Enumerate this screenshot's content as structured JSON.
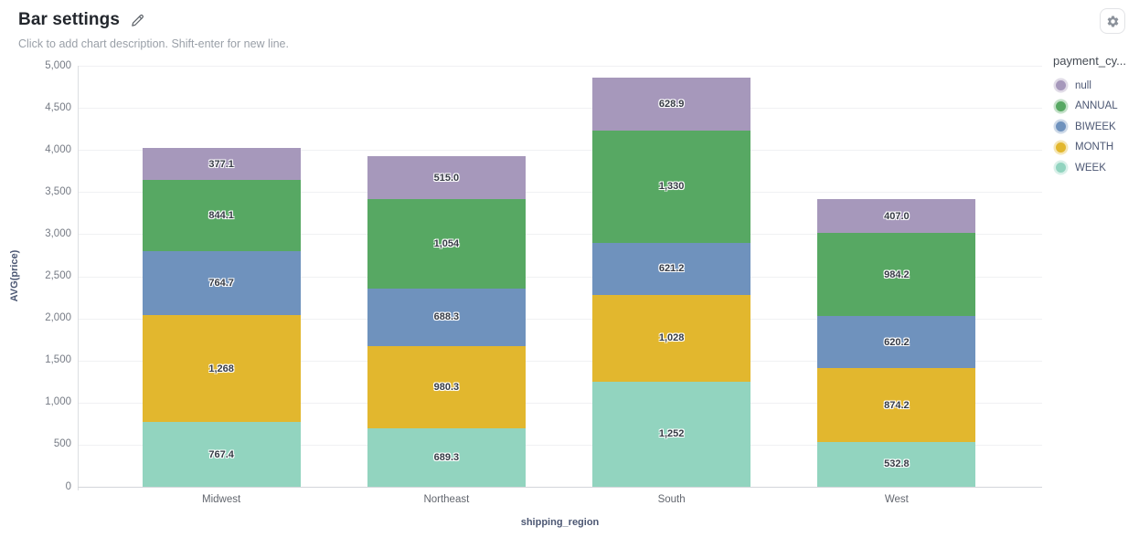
{
  "header": {
    "title": "Bar settings",
    "description_placeholder": "Click to add chart description. Shift-enter for new line.",
    "edit_icon": "pencil-icon",
    "settings_icon": "gear-icon"
  },
  "chart_data": {
    "type": "bar",
    "stacked": true,
    "title": "Bar settings",
    "xlabel": "shipping_region",
    "ylabel": "AVG(price)",
    "ylim": [
      0,
      5000
    ],
    "y_tick_step": 500,
    "y_ticks": [
      "0",
      "500",
      "1,000",
      "1,500",
      "2,000",
      "2,500",
      "3,000",
      "3,500",
      "4,000",
      "4,500",
      "5,000"
    ],
    "grid": true,
    "legend_position": "right",
    "legend_title": "payment_cy...",
    "categories": [
      "Midwest",
      "Northeast",
      "South",
      "West"
    ],
    "series": [
      {
        "name": "null",
        "color": "#a698bb",
        "values": [
          377.1,
          515.0,
          628.9,
          407.0
        ],
        "labels": [
          "377.1",
          "515.0",
          "628.9",
          "407.0"
        ]
      },
      {
        "name": "ANNUAL",
        "color": "#57a863",
        "values": [
          844.1,
          1054,
          1330,
          984.2
        ],
        "labels": [
          "844.1",
          "1,054",
          "1,330",
          "984.2"
        ]
      },
      {
        "name": "BIWEEK",
        "color": "#6f92bd",
        "values": [
          764.7,
          688.3,
          621.2,
          620.2
        ],
        "labels": [
          "764.7",
          "688.3",
          "621.2",
          "620.2"
        ]
      },
      {
        "name": "MONTH",
        "color": "#e2b72e",
        "values": [
          1268,
          980.3,
          1028,
          874.2
        ],
        "labels": [
          "1,268",
          "980.3",
          "1,028",
          "874.2"
        ]
      },
      {
        "name": "WEEK",
        "color": "#92d4bf",
        "values": [
          767.4,
          689.3,
          1252,
          532.8
        ],
        "labels": [
          "767.4",
          "689.3",
          "1,252",
          "532.8"
        ]
      }
    ],
    "stack_order": "last series at bottom",
    "category_totals": [
      4021.3,
      3926.9,
      4860.1,
      3418.4
    ]
  }
}
